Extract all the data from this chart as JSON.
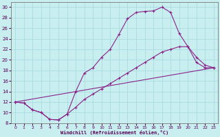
{
  "xlabel": "Windchill (Refroidissement éolien,°C)",
  "background_color": "#c9eef0",
  "grid_color": "#a8dde0",
  "line_color": "#882288",
  "xlim": [
    -0.5,
    23.5
  ],
  "ylim": [
    8,
    31
  ],
  "xticks": [
    0,
    1,
    2,
    3,
    4,
    5,
    6,
    7,
    8,
    9,
    10,
    11,
    12,
    13,
    14,
    15,
    16,
    17,
    18,
    19,
    20,
    21,
    22,
    23
  ],
  "yticks": [
    8,
    10,
    12,
    14,
    16,
    18,
    20,
    22,
    24,
    26,
    28,
    30
  ],
  "curve1_x": [
    0,
    1,
    2,
    3,
    4,
    5,
    6,
    7,
    8,
    9,
    10,
    11,
    12,
    13,
    14,
    15,
    16,
    17,
    18,
    19,
    20,
    21,
    22,
    23
  ],
  "curve1_y": [
    12,
    11.8,
    10.5,
    10.0,
    8.7,
    8.6,
    9.7,
    14.0,
    17.5,
    18.5,
    20.5,
    22.0,
    24.8,
    27.8,
    29.0,
    29.2,
    29.3,
    30.0,
    29.0,
    25.0,
    22.5,
    19.5,
    18.5,
    18.5
  ],
  "curve2_x": [
    0,
    1,
    2,
    3,
    4,
    5,
    6,
    7,
    8,
    9,
    10,
    11,
    12,
    13,
    14,
    15,
    16,
    17,
    18,
    19,
    20,
    21,
    22,
    23
  ],
  "curve2_y": [
    12,
    11.8,
    10.5,
    10.0,
    8.7,
    8.6,
    9.7,
    11.0,
    12.5,
    13.5,
    14.5,
    15.5,
    16.5,
    17.5,
    18.5,
    19.5,
    20.5,
    21.5,
    22.0,
    22.5,
    22.5,
    20.5,
    19.0,
    18.5
  ],
  "curve3_x": [
    0,
    23
  ],
  "curve3_y": [
    12,
    18.5
  ]
}
